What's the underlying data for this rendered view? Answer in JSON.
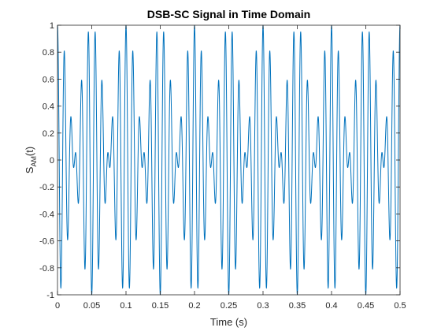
{
  "chart_data": {
    "type": "line",
    "title": "DSB-SC Signal in Time Domain",
    "xlabel": "Time (s)",
    "ylabel": {
      "base": "S",
      "subscript": "AM",
      "suffix": "(t)"
    },
    "xlim": [
      0,
      0.5
    ],
    "ylim": [
      -1,
      1
    ],
    "xticks": [
      0,
      0.05,
      0.1,
      0.15,
      0.2,
      0.25,
      0.3,
      0.35,
      0.4,
      0.45,
      0.5
    ],
    "xtick_labels": [
      "0",
      "0.05",
      "0.1",
      "0.15",
      "0.2",
      "0.25",
      "0.3",
      "0.35",
      "0.4",
      "0.45",
      "0.5"
    ],
    "yticks": [
      -1,
      -0.8,
      -0.6,
      -0.4,
      -0.2,
      0,
      0.2,
      0.4,
      0.6,
      0.8,
      1
    ],
    "ytick_labels": [
      "-1",
      "-0.8",
      "-0.6",
      "-0.4",
      "-0.2",
      "0",
      "0.2",
      "0.4",
      "0.6",
      "0.8",
      "1"
    ],
    "grid": false,
    "legend": "none",
    "series": [
      {
        "expression": "cos(2*pi*10*t) * cos(2*pi*100*t)",
        "modulating_frequency_hz": 10,
        "carrier_frequency_hz": 100,
        "t_start": 0,
        "t_end": 0.5,
        "sample_count": 2001
      }
    ],
    "colors": {
      "line": "#0072BD",
      "axes": "#262626",
      "background": "#ffffff"
    }
  }
}
